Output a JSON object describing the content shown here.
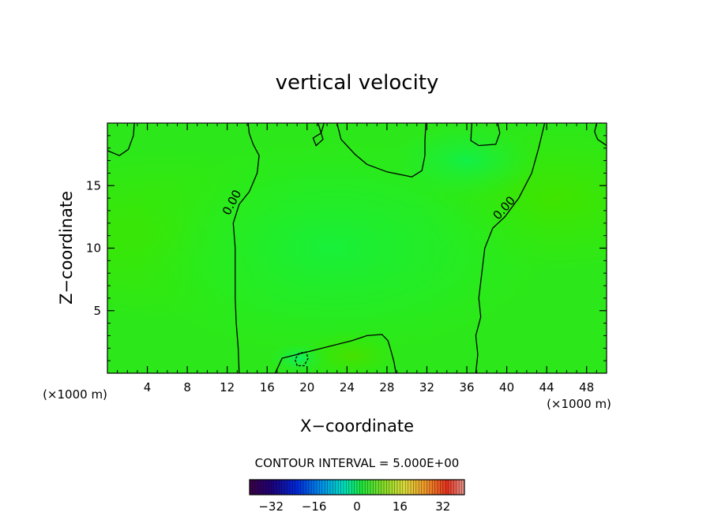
{
  "chart_data": {
    "type": "heatmap",
    "title": "vertical velocity",
    "xlabel": "X−coordinate",
    "ylabel": "Z−coordinate",
    "x_unit": "(×1000 m)",
    "z_unit": "(×1000 m)",
    "xlim": [
      0,
      50
    ],
    "ylim": [
      0,
      20
    ],
    "x_ticks": [
      4,
      8,
      12,
      16,
      20,
      24,
      28,
      32,
      36,
      40,
      44,
      48
    ],
    "y_ticks": [
      5,
      10,
      15
    ],
    "contour_interval_text": "CONTOUR INTERVAL = 5.000E+00",
    "contour_labels": [
      "0.00",
      "0.00"
    ],
    "colorbar": {
      "range": [
        -40,
        40
      ],
      "ticks": [
        -32,
        -16,
        0,
        16,
        32
      ],
      "tick_labels": [
        "−32",
        "−16",
        "0",
        "16",
        "32"
      ]
    },
    "contours": [
      {
        "level": 0,
        "style": "solid",
        "points": [
          [
            13.2,
            0
          ],
          [
            13.1,
            2
          ],
          [
            12.9,
            4
          ],
          [
            12.8,
            6
          ],
          [
            12.8,
            8
          ],
          [
            12.8,
            10
          ],
          [
            12.6,
            12
          ],
          [
            13.2,
            13.5
          ],
          [
            14.2,
            14.5
          ],
          [
            15,
            16
          ],
          [
            15.2,
            17.4
          ],
          [
            14.6,
            18.3
          ],
          [
            14.2,
            19.2
          ],
          [
            14.1,
            20
          ]
        ]
      },
      {
        "level": 0,
        "style": "solid",
        "points": [
          [
            36.9,
            0
          ],
          [
            37.1,
            1.5
          ],
          [
            36.9,
            3
          ],
          [
            37.4,
            4.5
          ],
          [
            37.2,
            6
          ],
          [
            37.5,
            8
          ],
          [
            37.8,
            10
          ],
          [
            38.6,
            11.6
          ],
          [
            39.8,
            12.5
          ],
          [
            41.2,
            14
          ],
          [
            42.5,
            16
          ],
          [
            43.2,
            18
          ],
          [
            43.8,
            20
          ]
        ]
      },
      {
        "level": 0,
        "style": "solid",
        "points": [
          [
            16.8,
            0
          ],
          [
            17.5,
            1.2
          ],
          [
            19,
            1.5
          ],
          [
            20.5,
            1.8
          ],
          [
            22.5,
            2.2
          ],
          [
            24.5,
            2.6
          ],
          [
            26,
            3
          ],
          [
            27.5,
            3.1
          ],
          [
            28.1,
            2.6
          ],
          [
            28.4,
            1.8
          ],
          [
            28.7,
            0.9
          ],
          [
            28.9,
            0
          ]
        ]
      },
      {
        "level": 0,
        "style": "solid",
        "points": [
          [
            23,
            20
          ],
          [
            23.4,
            18.7
          ],
          [
            24.8,
            17.5
          ],
          [
            26,
            16.7
          ],
          [
            28,
            16.1
          ],
          [
            30.5,
            15.7
          ],
          [
            31.5,
            16.2
          ],
          [
            31.8,
            17.4
          ],
          [
            31.8,
            18.6
          ],
          [
            31.9,
            20
          ]
        ]
      },
      {
        "level": 0,
        "style": "solid",
        "points": [
          [
            21.1,
            20
          ],
          [
            21.6,
            18.7
          ],
          [
            20.9,
            18.2
          ],
          [
            20.6,
            18.8
          ],
          [
            21.4,
            19.2
          ],
          [
            21.7,
            20
          ]
        ]
      },
      {
        "level": 0,
        "style": "solid",
        "points": [
          [
            0,
            17.8
          ],
          [
            1.2,
            17.4
          ],
          [
            2.1,
            17.9
          ],
          [
            2.6,
            19
          ],
          [
            2.7,
            20
          ]
        ]
      },
      {
        "level": 0,
        "style": "solid",
        "points": [
          [
            36.5,
            20
          ],
          [
            36.4,
            18.6
          ],
          [
            37.2,
            18.2
          ],
          [
            38.9,
            18.3
          ],
          [
            39.3,
            19.2
          ],
          [
            39.1,
            20
          ]
        ]
      },
      {
        "level": 0,
        "style": "solid",
        "points": [
          [
            50,
            18.2
          ],
          [
            49.1,
            18.7
          ],
          [
            48.8,
            19.3
          ],
          [
            49,
            20
          ]
        ]
      },
      {
        "level": -5,
        "style": "dashed",
        "points": [
          [
            19,
            0.6
          ],
          [
            18.8,
            1.1
          ],
          [
            19.2,
            1.6
          ],
          [
            19.9,
            1.7
          ],
          [
            20.1,
            1.2
          ],
          [
            19.7,
            0.6
          ],
          [
            19,
            0.6
          ]
        ]
      }
    ]
  }
}
